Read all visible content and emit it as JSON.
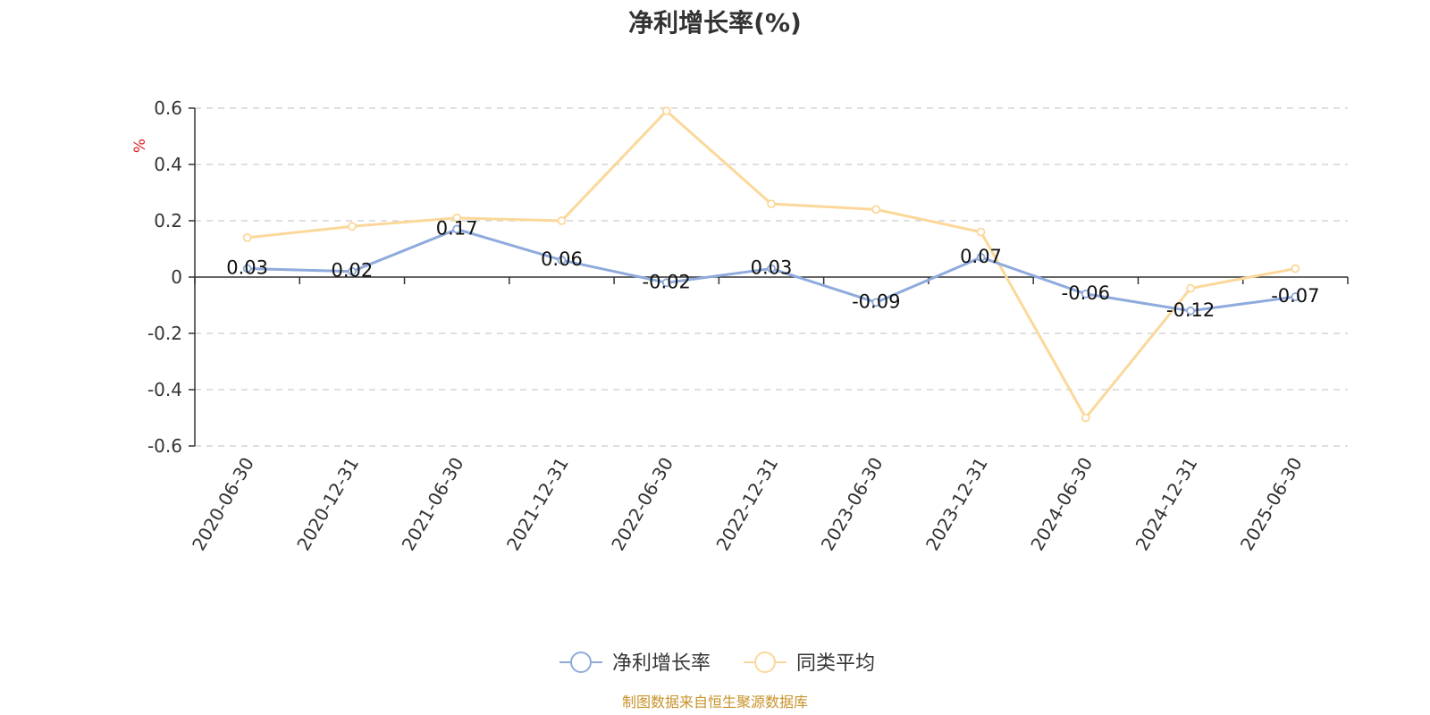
{
  "chart_data": {
    "type": "line",
    "title": "净利增长率(%)",
    "ylabel": "%",
    "xlabel": "",
    "categories": [
      "2020-06-30",
      "2020-12-31",
      "2021-06-30",
      "2021-12-31",
      "2022-06-30",
      "2022-12-31",
      "2023-06-30",
      "2023-12-31",
      "2024-06-30",
      "2024-12-31",
      "2025-06-30"
    ],
    "ylim": [
      -0.6,
      0.6
    ],
    "yticks": [
      "0.6",
      "0.4",
      "0.2",
      "0",
      "-0.2",
      "-0.4",
      "-0.6"
    ],
    "grid": true,
    "legend_position": "bottom-center",
    "series": [
      {
        "name": "净利增长率",
        "color": "#8faadc",
        "values": [
          0.03,
          0.02,
          0.17,
          0.06,
          -0.02,
          0.03,
          -0.09,
          0.07,
          -0.06,
          -0.12,
          -0.07
        ],
        "labels": [
          "0.03",
          "0.02",
          "0.17",
          "0.06",
          "-0.02",
          "0.03",
          "-0.09",
          "0.07",
          "-0.06",
          "-0.12",
          "-0.07"
        ]
      },
      {
        "name": "同类平均",
        "color": "#fbd89a",
        "values": [
          0.14,
          0.18,
          0.21,
          0.2,
          0.59,
          0.26,
          0.24,
          0.16,
          -0.5,
          -0.04,
          0.03
        ]
      }
    ]
  },
  "colors": {
    "axis": "#333333",
    "grid": "#cccccc",
    "ylabel": "#e02020",
    "source": "#c8922a"
  },
  "source_note": "制图数据来自恒生聚源数据库"
}
